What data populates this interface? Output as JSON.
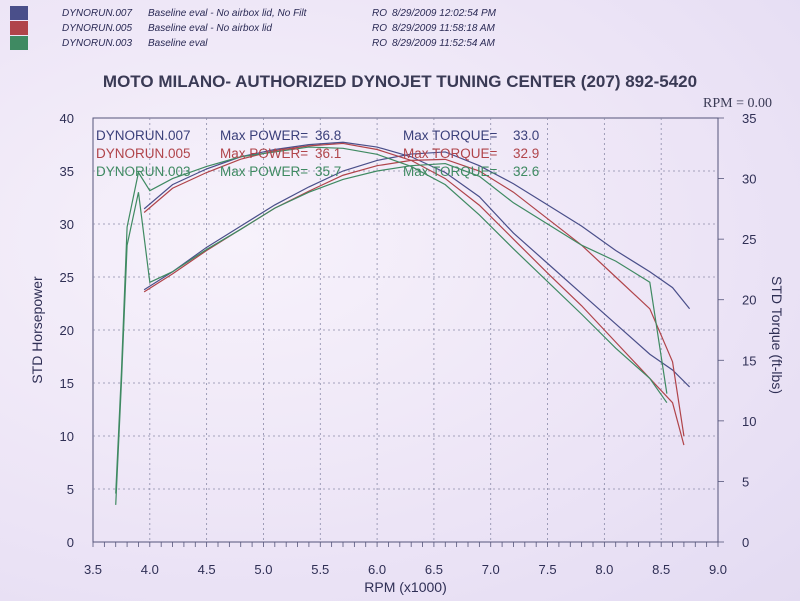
{
  "header": {
    "runs": [
      {
        "name": "DYNORUN.007",
        "desc": "Baseline eval - No airbox lid, No Filt",
        "flag": "RO",
        "datetime": "8/29/2009 12:02:54 PM",
        "color": "#4a4f8a"
      },
      {
        "name": "DYNORUN.005",
        "desc": "Baseline eval - No airbox lid",
        "flag": "RO",
        "datetime": "8/29/2009 11:58:18 AM",
        "color": "#b0444a"
      },
      {
        "name": "DYNORUN.003",
        "desc": "Baseline eval",
        "flag": "RO",
        "datetime": "8/29/2009 11:52:54 AM",
        "color": "#3f8a62"
      }
    ],
    "title": "MOTO MILANO- AUTHORIZED DYNOJET TUNING CENTER (207) 892-5420",
    "rpm_readout": "RPM = 0.00"
  },
  "chart_data": {
    "type": "line",
    "xlabel": "RPM (x1000)",
    "ylabel_left": "STD Horsepower",
    "ylabel_right": "STD Torque (ft-lbs)",
    "xlim": [
      3.5,
      9.0
    ],
    "ylim_left": [
      0,
      40
    ],
    "ylim_right": [
      0,
      35
    ],
    "x_ticks": [
      "3.5",
      "4.0",
      "4.5",
      "5.0",
      "5.5",
      "6.0",
      "6.5",
      "7.0",
      "7.5",
      "8.0",
      "8.5",
      "9.0"
    ],
    "y_ticks_left": [
      "0",
      "5",
      "10",
      "15",
      "20",
      "25",
      "30",
      "35",
      "40"
    ],
    "y_ticks_right": [
      "0",
      "5",
      "10",
      "15",
      "20",
      "25",
      "30",
      "35"
    ],
    "grid": true,
    "summary": [
      {
        "run": "DYNORUN.007",
        "power_label": "Max POWER=",
        "power": "36.8",
        "torque_label": "Max TORQUE=",
        "torque": "33.0",
        "color": "#3a3f7a"
      },
      {
        "run": "DYNORUN.005",
        "power_label": "Max POWER=",
        "power": "36.1",
        "torque_label": "Max TORQUE=",
        "torque": "32.9",
        "color": "#b0444a"
      },
      {
        "run": "DYNORUN.003",
        "power_label": "Max POWER=",
        "power": "35.7",
        "torque_label": "Max TORQUE=",
        "torque": "32.6",
        "color": "#3f8a62"
      }
    ],
    "series": [
      {
        "name": "DYNORUN.007",
        "color": "#4a4f8a",
        "horsepower": {
          "x": [
            3.95,
            4.2,
            4.5,
            4.8,
            5.1,
            5.4,
            5.7,
            6.0,
            6.3,
            6.6,
            6.9,
            7.2,
            7.5,
            7.8,
            8.1,
            8.4,
            8.6,
            8.75
          ],
          "y": [
            23.8,
            25.5,
            27.8,
            29.8,
            31.8,
            33.5,
            35.0,
            36.0,
            36.6,
            36.8,
            35.5,
            33.8,
            31.8,
            29.8,
            27.5,
            25.5,
            24.0,
            22.0
          ]
        },
        "torque": {
          "x": [
            3.95,
            4.2,
            4.5,
            4.8,
            5.1,
            5.4,
            5.7,
            6.0,
            6.3,
            6.6,
            6.9,
            7.2,
            7.5,
            7.8,
            8.1,
            8.4,
            8.6,
            8.75
          ],
          "y": [
            27.5,
            29.5,
            30.8,
            31.8,
            32.4,
            32.8,
            33.0,
            32.6,
            31.8,
            30.5,
            28.5,
            25.5,
            23.0,
            20.5,
            18.0,
            15.5,
            14.2,
            12.8
          ]
        }
      },
      {
        "name": "DYNORUN.005",
        "color": "#b0444a",
        "horsepower": {
          "x": [
            3.95,
            4.2,
            4.5,
            4.8,
            5.1,
            5.4,
            5.7,
            6.0,
            6.3,
            6.6,
            6.9,
            7.2,
            7.5,
            7.8,
            8.1,
            8.4,
            8.6,
            8.7
          ],
          "y": [
            23.6,
            25.3,
            27.5,
            29.5,
            31.5,
            33.1,
            34.6,
            35.5,
            36.0,
            36.1,
            35.0,
            33.0,
            30.5,
            28.0,
            25.0,
            22.0,
            17.0,
            10.0
          ]
        },
        "torque": {
          "x": [
            3.95,
            4.2,
            4.5,
            4.8,
            5.1,
            5.4,
            5.7,
            6.0,
            6.3,
            6.6,
            6.9,
            7.2,
            7.5,
            7.8,
            8.1,
            8.4,
            8.6,
            8.7
          ],
          "y": [
            27.2,
            29.2,
            30.5,
            31.6,
            32.3,
            32.7,
            32.9,
            32.4,
            31.5,
            30.0,
            27.8,
            25.0,
            22.2,
            19.5,
            16.5,
            13.5,
            11.5,
            8.0
          ]
        }
      },
      {
        "name": "DYNORUN.003",
        "color": "#3f8a62",
        "horsepower": {
          "x": [
            3.7,
            3.75,
            3.8,
            3.9,
            4.0,
            4.2,
            4.5,
            4.8,
            5.1,
            5.4,
            5.7,
            6.0,
            6.3,
            6.6,
            6.9,
            7.2,
            7.5,
            7.8,
            8.1,
            8.4,
            8.55
          ],
          "y": [
            3.5,
            15.0,
            28.0,
            33.0,
            24.5,
            25.5,
            27.6,
            29.5,
            31.5,
            33.0,
            34.2,
            35.0,
            35.5,
            35.7,
            34.5,
            32.0,
            30.0,
            28.0,
            26.5,
            24.5,
            14.0
          ]
        },
        "torque": {
          "x": [
            3.7,
            3.75,
            3.8,
            3.9,
            4.0,
            4.2,
            4.5,
            4.8,
            5.1,
            5.4,
            5.7,
            6.0,
            6.3,
            6.6,
            6.9,
            7.2,
            7.5,
            7.8,
            8.1,
            8.4,
            8.55
          ],
          "y": [
            4.0,
            14.0,
            26.0,
            30.5,
            29.0,
            30.0,
            31.0,
            31.8,
            32.2,
            32.6,
            32.5,
            32.0,
            31.0,
            29.5,
            27.0,
            24.2,
            21.5,
            18.8,
            16.0,
            13.5,
            11.5
          ]
        }
      }
    ]
  }
}
